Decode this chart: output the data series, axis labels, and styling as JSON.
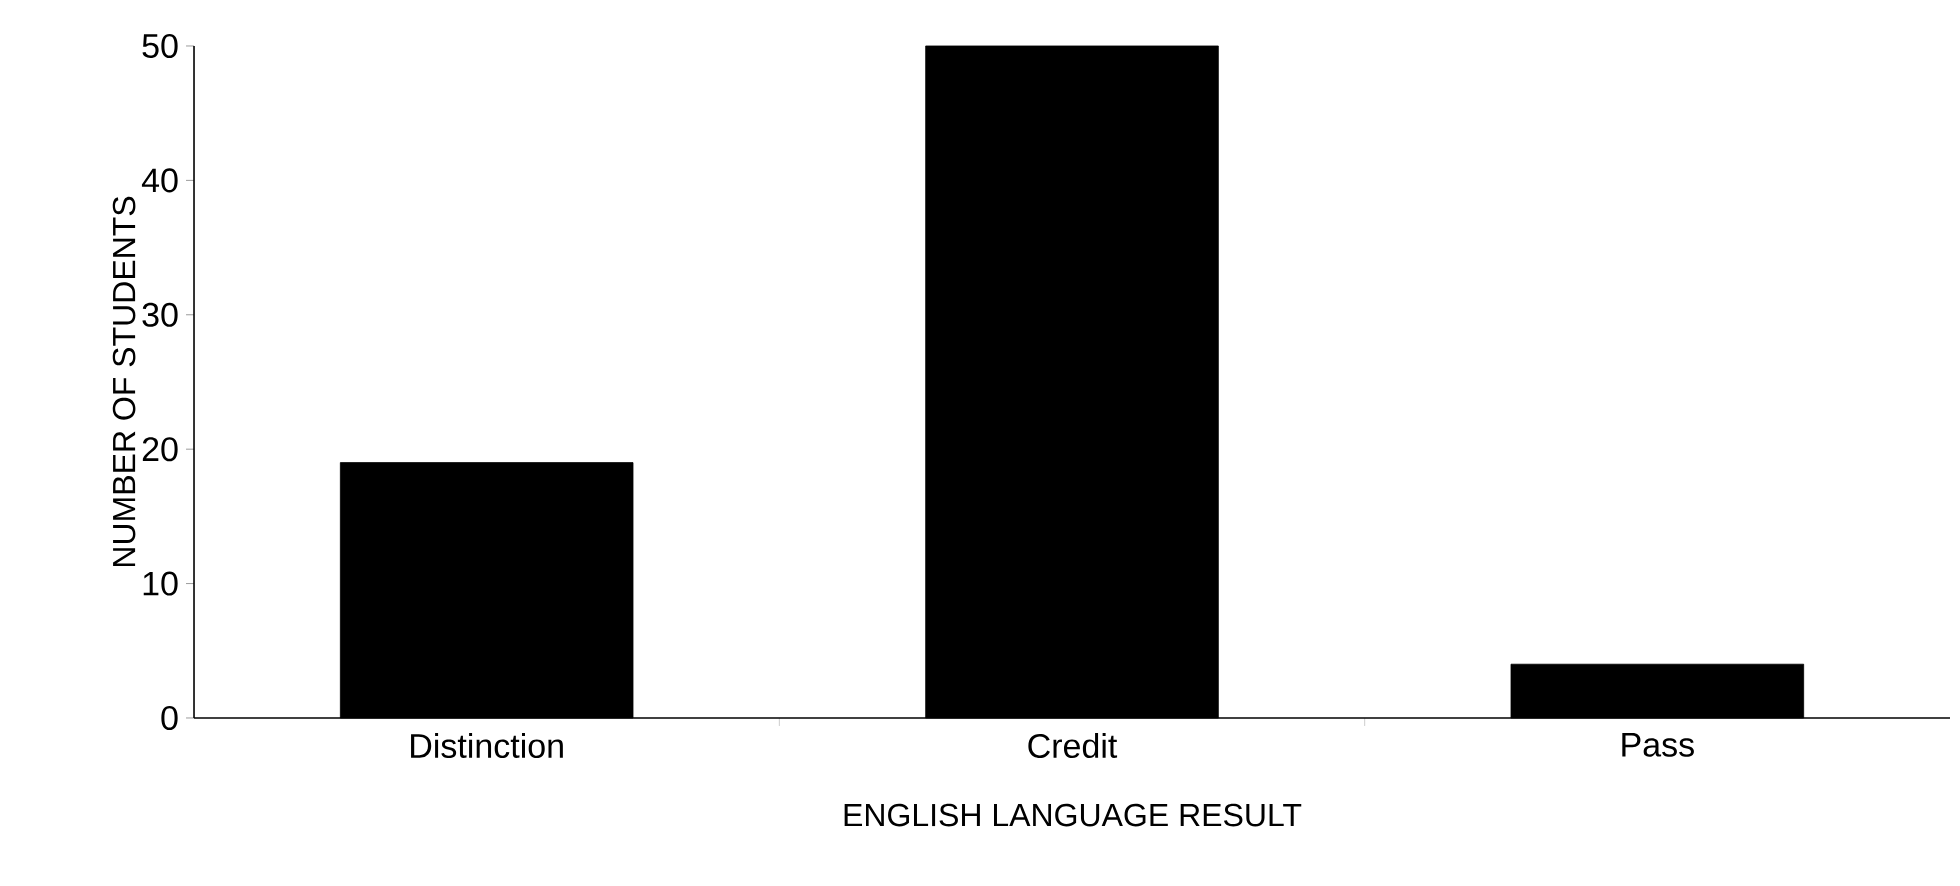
{
  "chart_data": {
    "type": "bar",
    "xlabel": "ENGLISH LANGUAGE RESULT",
    "ylabel": "NUMBER OF STUDENTS",
    "categories": [
      "Distinction",
      "Credit",
      "Pass"
    ],
    "values": [
      19,
      50,
      4
    ],
    "color": "#000000",
    "ylim": [
      0,
      50
    ],
    "yticks": [
      0,
      10,
      20,
      30,
      40,
      50
    ],
    "grid": false
  }
}
